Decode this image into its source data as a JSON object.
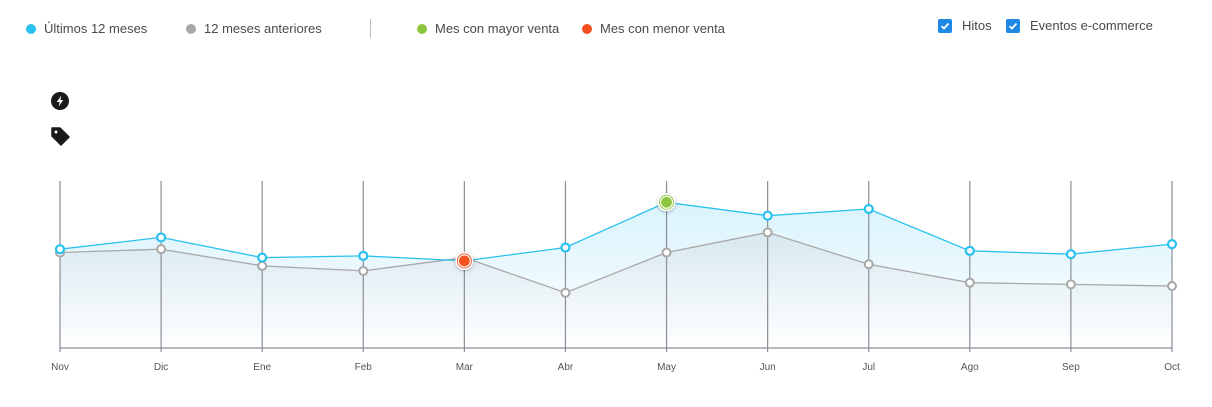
{
  "legend": {
    "items": [
      {
        "label": "Últimos 12 meses",
        "color": "#29c1ee"
      },
      {
        "label": "12 meses anteriores",
        "color": "#a8a8a8"
      },
      {
        "label": "Mes con mayor venta",
        "color": "#8cc63f"
      },
      {
        "label": "Mes con menor venta",
        "color": "#f4511e"
      }
    ]
  },
  "toggles": [
    {
      "label": "Hitos",
      "checked": true
    },
    {
      "label": "Eventos e-commerce",
      "checked": true
    }
  ],
  "side_icons": [
    "bolt-icon",
    "tag-icon"
  ],
  "chart_data": {
    "type": "line",
    "title": "",
    "xlabel": "",
    "ylabel": "",
    "grid": "vertical",
    "legend_position": "top",
    "categories": [
      "Nov",
      "Dic",
      "Ene",
      "Feb",
      "Mar",
      "Abr",
      "May",
      "Jun",
      "Jul",
      "Ago",
      "Sep",
      "Oct"
    ],
    "series": [
      {
        "name": "Últimos 12 meses",
        "color": "#29c1ee",
        "values": [
          59,
          66,
          54,
          55,
          52,
          60,
          87,
          79,
          83,
          58,
          56,
          62
        ]
      },
      {
        "name": "12 meses anteriores",
        "color": "#a8a8a8",
        "values": [
          57,
          59,
          49,
          46,
          54,
          33,
          57,
          69,
          50,
          39,
          38,
          37
        ]
      }
    ],
    "annotations": [
      {
        "label": "Mes con mayor venta",
        "category": "May",
        "color": "#8cc63f"
      },
      {
        "label": "Mes con menor venta",
        "category": "Mar",
        "color": "#f4511e"
      }
    ],
    "ylim": [
      0,
      100
    ]
  }
}
